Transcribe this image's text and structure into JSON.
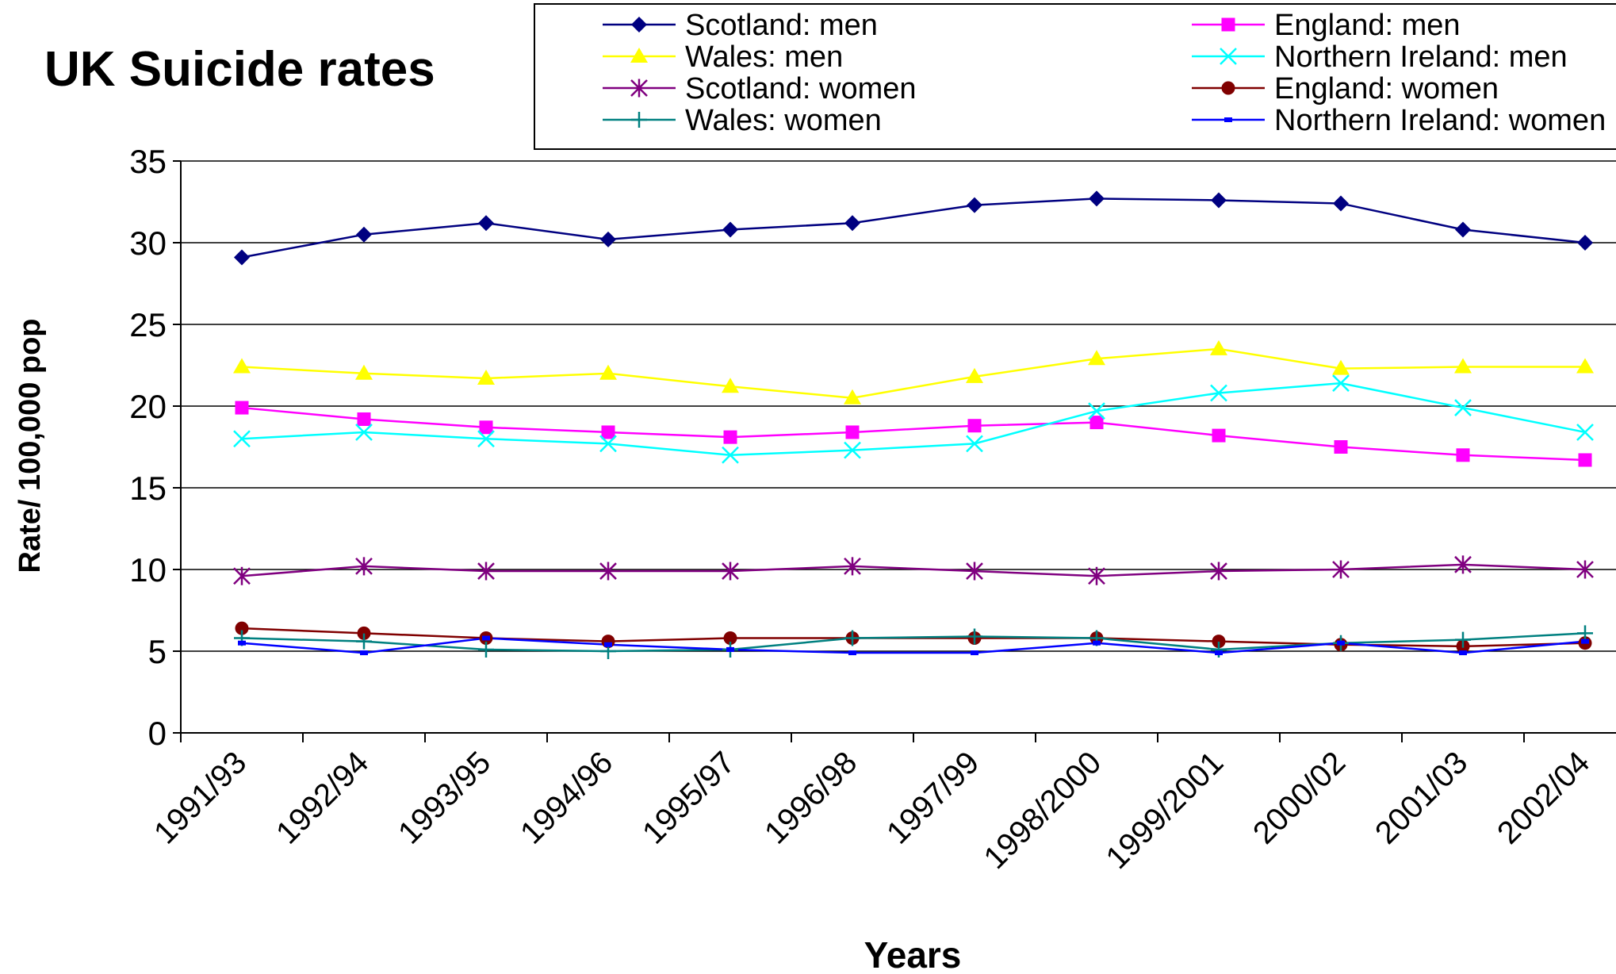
{
  "chart_data": {
    "type": "line",
    "title": "UK Suicide rates",
    "xlabel": "Years",
    "ylabel": "Rate/ 100,000 pop",
    "ylim": [
      0,
      35
    ],
    "yticks": [
      0,
      5,
      10,
      15,
      20,
      25,
      30,
      35
    ],
    "categories": [
      "1991/93",
      "1992/94",
      "1993/95",
      "1994/96",
      "1995/97",
      "1996/98",
      "1997/99",
      "1998/2000",
      "1999/2001",
      "2000/02",
      "2001/03",
      "2002/04"
    ],
    "grid": "horizontal",
    "legend_position": "top-right",
    "series": [
      {
        "name": "Scotland: men",
        "color": "#000080",
        "marker": "diamond",
        "values": [
          29.1,
          30.5,
          31.2,
          30.2,
          30.8,
          31.2,
          32.3,
          32.7,
          32.6,
          32.4,
          30.8,
          30.0
        ]
      },
      {
        "name": "England: men",
        "color": "#FF00FF",
        "marker": "square",
        "values": [
          19.9,
          19.2,
          18.7,
          18.4,
          18.1,
          18.4,
          18.8,
          19.0,
          18.2,
          17.5,
          17.0,
          16.7
        ]
      },
      {
        "name": "Wales: men",
        "color": "#FFFF00",
        "marker": "triangle",
        "values": [
          22.4,
          22.0,
          21.7,
          22.0,
          21.2,
          20.5,
          21.8,
          22.9,
          23.5,
          22.3,
          22.4,
          22.4
        ]
      },
      {
        "name": "Northern Ireland: men",
        "color": "#00FFFF",
        "marker": "x",
        "values": [
          18.0,
          18.4,
          18.0,
          17.7,
          17.0,
          17.3,
          17.7,
          19.7,
          20.8,
          21.4,
          19.9,
          18.4
        ]
      },
      {
        "name": "Scotland: women",
        "color": "#800080",
        "marker": "star",
        "values": [
          9.6,
          10.2,
          9.9,
          9.9,
          9.9,
          10.2,
          9.9,
          9.6,
          9.9,
          10.0,
          10.3,
          10.0
        ]
      },
      {
        "name": "England: women",
        "color": "#800000",
        "marker": "circle",
        "values": [
          6.4,
          6.1,
          5.8,
          5.6,
          5.8,
          5.8,
          5.8,
          5.8,
          5.6,
          5.4,
          5.3,
          5.5
        ]
      },
      {
        "name": "Wales: women",
        "color": "#008080",
        "marker": "plus",
        "values": [
          5.8,
          5.6,
          5.1,
          5.0,
          5.1,
          5.8,
          5.9,
          5.8,
          5.1,
          5.5,
          5.7,
          6.1
        ]
      },
      {
        "name": "Northern Ireland: women",
        "color": "#0000FF",
        "marker": "dash",
        "values": [
          5.5,
          4.9,
          5.8,
          5.4,
          5.1,
          4.9,
          4.9,
          5.5,
          4.9,
          5.5,
          4.9,
          5.6
        ]
      }
    ]
  }
}
